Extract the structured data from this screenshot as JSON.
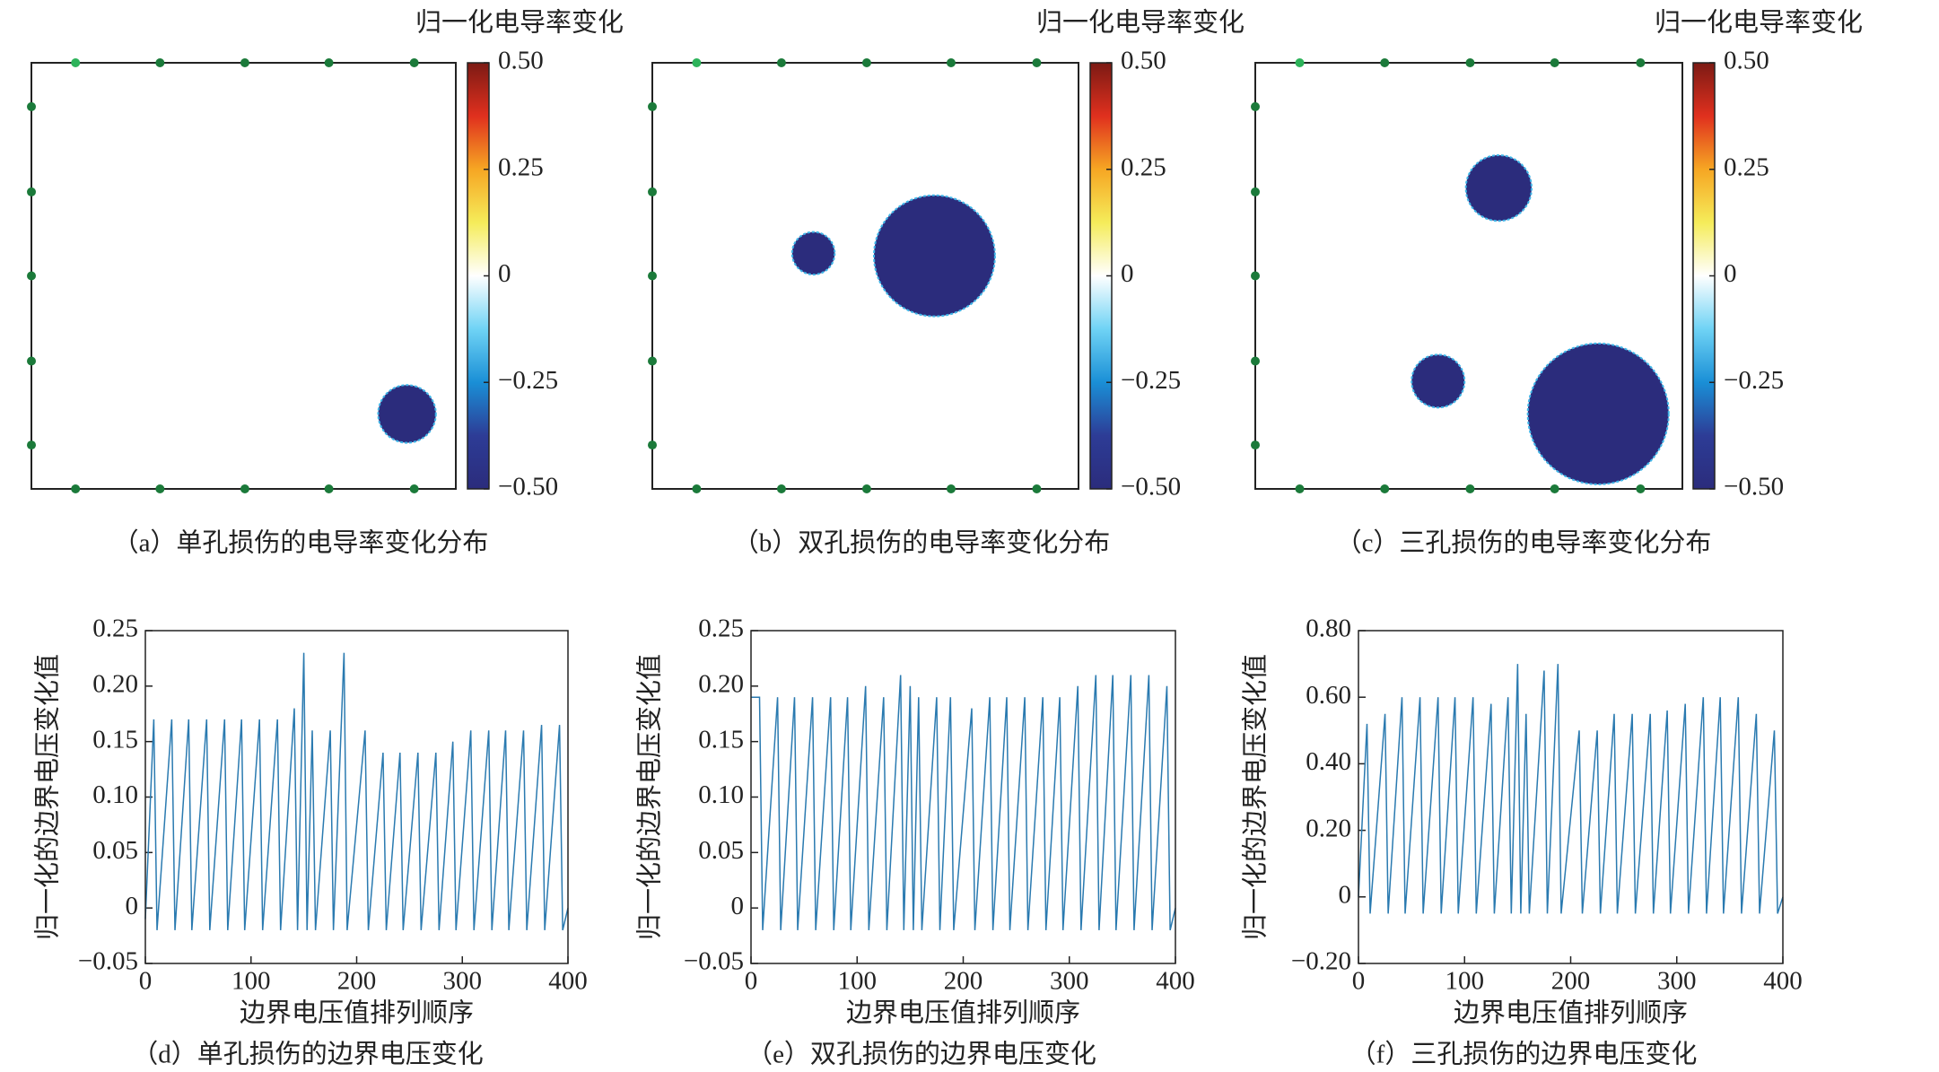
{
  "chart_data": [
    {
      "type": "conductivity-map",
      "title": "归一化电导率变化",
      "caption": "（a）单孔损伤的电导率变化分布",
      "circles": [
        {
          "x": 0.885,
          "y": 0.824,
          "r": 0.068,
          "value": -0.5
        }
      ],
      "colorscale": [
        "#2b2c7c",
        "#2d3c96",
        "#1a8fd6",
        "#6fd3f5",
        "#ffffff",
        "#f5ec5a",
        "#f6a623",
        "#e0301e",
        "#7c1a14"
      ],
      "clim": [
        -0.5,
        0.5
      ],
      "cticks": [
        {
          "value": 0.5,
          "label": "0.50"
        },
        0.25,
        0,
        {
          "value": -0.25,
          "label": "−0.25"
        },
        {
          "value": -0.5,
          "label": "−0.50"
        }
      ]
    },
    {
      "type": "conductivity-map",
      "title": "归一化电导率变化",
      "caption": "（b）双孔损伤的电导率变化分布",
      "circles": [
        {
          "x": 0.378,
          "y": 0.447,
          "r": 0.05,
          "value": -0.5
        },
        {
          "x": 0.662,
          "y": 0.453,
          "r": 0.142,
          "value": -0.5
        }
      ],
      "colorscale": [
        "#2b2c7c",
        "#2d3c96",
        "#1a8fd6",
        "#6fd3f5",
        "#ffffff",
        "#f5ec5a",
        "#f6a623",
        "#e0301e",
        "#7c1a14"
      ],
      "clim": [
        -0.5,
        0.5
      ],
      "cticks": [
        {
          "value": 0.5,
          "label": "0.50"
        },
        0.25,
        0,
        {
          "value": -0.25,
          "label": "−0.25"
        },
        {
          "value": -0.5,
          "label": "−0.50"
        }
      ]
    },
    {
      "type": "conductivity-map",
      "title": "归一化电导率变化",
      "caption": "（c）三孔损伤的电导率变化分布",
      "circles": [
        {
          "x": 0.57,
          "y": 0.294,
          "r": 0.077,
          "value": -0.5
        },
        {
          "x": 0.428,
          "y": 0.747,
          "r": 0.062,
          "value": -0.5
        },
        {
          "x": 0.803,
          "y": 0.824,
          "r": 0.165,
          "value": -0.5
        }
      ],
      "colorscale": [
        "#2b2c7c",
        "#2d3c96",
        "#1a8fd6",
        "#6fd3f5",
        "#ffffff",
        "#f5ec5a",
        "#f6a623",
        "#e0301e",
        "#7c1a14"
      ],
      "clim": [
        -0.5,
        0.5
      ],
      "cticks": [
        {
          "value": 0.5,
          "label": "0.50"
        },
        0.25,
        0,
        {
          "value": -0.25,
          "label": "−0.25"
        },
        {
          "value": -0.5,
          "label": "−0.50"
        }
      ]
    },
    {
      "type": "line",
      "caption": "（d）单孔损伤的边界电压变化",
      "xlabel": "边界电压值排列顺序",
      "ylabel": "归一化的边界电压变化值",
      "color": "#2a7ab0",
      "x": [
        0,
        8,
        11,
        25,
        28,
        41,
        44,
        58,
        61,
        75,
        78,
        91,
        94,
        108,
        111,
        125,
        128,
        141,
        144,
        150,
        153,
        158,
        161,
        175,
        178,
        188,
        191,
        208,
        211,
        225,
        228,
        241,
        244,
        258,
        261,
        275,
        278,
        291,
        294,
        308,
        311,
        325,
        328,
        341,
        344,
        358,
        361,
        375,
        378,
        392,
        395,
        400
      ],
      "values": [
        -0.01,
        0.17,
        -0.02,
        0.17,
        -0.02,
        0.17,
        -0.02,
        0.17,
        -0.02,
        0.17,
        -0.02,
        0.17,
        -0.02,
        0.17,
        -0.02,
        0.17,
        -0.02,
        0.18,
        -0.02,
        0.23,
        -0.02,
        0.16,
        -0.02,
        0.16,
        -0.02,
        0.23,
        -0.02,
        0.16,
        -0.02,
        0.14,
        -0.02,
        0.14,
        -0.02,
        0.14,
        -0.02,
        0.14,
        -0.02,
        0.15,
        -0.02,
        0.16,
        -0.02,
        0.16,
        -0.02,
        0.16,
        -0.02,
        0.16,
        -0.02,
        0.165,
        -0.02,
        0.165,
        -0.02,
        0
      ],
      "xlim": [
        0,
        400
      ],
      "xticks": [
        0,
        100,
        200,
        300,
        400
      ],
      "ylim": [
        -0.05,
        0.25
      ],
      "yticks": [
        0.25,
        {
          "value": 0.2,
          "label": "0.20"
        },
        0.15,
        {
          "value": 0.1,
          "label": "0.10"
        },
        0.05,
        0,
        {
          "value": -0.05,
          "label": "−0.05"
        }
      ]
    },
    {
      "type": "line",
      "caption": "（e）双孔损伤的边界电压变化",
      "xlabel": "边界电压值排列顺序",
      "ylabel": "归一化的边界电压变化值",
      "color": "#2a7ab0",
      "x": [
        0,
        8,
        11,
        25,
        28,
        41,
        44,
        58,
        61,
        75,
        78,
        91,
        94,
        108,
        111,
        125,
        128,
        141,
        144,
        150,
        153,
        158,
        161,
        175,
        178,
        188,
        191,
        208,
        211,
        225,
        228,
        241,
        244,
        258,
        261,
        275,
        278,
        291,
        294,
        308,
        311,
        325,
        328,
        341,
        344,
        358,
        361,
        375,
        378,
        392,
        395,
        400
      ],
      "values": [
        0.19,
        0.19,
        -0.02,
        0.19,
        -0.02,
        0.19,
        -0.02,
        0.19,
        -0.02,
        0.19,
        -0.02,
        0.19,
        -0.02,
        0.2,
        -0.02,
        0.19,
        -0.02,
        0.21,
        -0.02,
        0.2,
        -0.02,
        0.19,
        -0.02,
        0.19,
        -0.02,
        0.19,
        -0.02,
        0.18,
        -0.02,
        0.19,
        -0.02,
        0.19,
        -0.02,
        0.19,
        -0.02,
        0.19,
        -0.02,
        0.19,
        -0.02,
        0.2,
        -0.02,
        0.21,
        -0.02,
        0.21,
        -0.02,
        0.21,
        -0.02,
        0.21,
        -0.02,
        0.2,
        -0.02,
        0
      ],
      "xlim": [
        0,
        400
      ],
      "xticks": [
        0,
        100,
        200,
        300,
        400
      ],
      "ylim": [
        -0.05,
        0.25
      ],
      "yticks": [
        0.25,
        {
          "value": 0.2,
          "label": "0.20"
        },
        0.15,
        {
          "value": 0.1,
          "label": "0.10"
        },
        0.05,
        0,
        {
          "value": -0.05,
          "label": "−0.05"
        }
      ]
    },
    {
      "type": "line",
      "caption": "（f）三孔损伤的边界电压变化",
      "xlabel": "边界电压值排列顺序",
      "ylabel": "归一化的边界电压变化值",
      "color": "#2a7ab0",
      "x": [
        0,
        8,
        11,
        25,
        28,
        41,
        44,
        58,
        61,
        75,
        78,
        91,
        94,
        108,
        111,
        125,
        128,
        141,
        144,
        150,
        153,
        158,
        161,
        175,
        178,
        188,
        191,
        208,
        211,
        225,
        228,
        241,
        244,
        258,
        261,
        275,
        278,
        291,
        294,
        308,
        311,
        325,
        328,
        341,
        344,
        358,
        361,
        375,
        378,
        392,
        395,
        400
      ],
      "values": [
        0,
        0.52,
        -0.05,
        0.55,
        -0.05,
        0.6,
        -0.05,
        0.6,
        -0.05,
        0.6,
        -0.05,
        0.6,
        -0.05,
        0.6,
        -0.05,
        0.58,
        -0.05,
        0.6,
        -0.05,
        0.7,
        -0.05,
        0.55,
        -0.05,
        0.68,
        -0.05,
        0.7,
        -0.05,
        0.5,
        -0.05,
        0.5,
        -0.05,
        0.55,
        -0.05,
        0.55,
        -0.05,
        0.55,
        -0.05,
        0.56,
        -0.05,
        0.58,
        -0.05,
        0.6,
        -0.05,
        0.6,
        -0.05,
        0.6,
        -0.05,
        0.55,
        -0.05,
        0.5,
        -0.05,
        0
      ],
      "xlim": [
        0,
        400
      ],
      "xticks": [
        0,
        100,
        200,
        300,
        400
      ],
      "ylim": [
        -0.2,
        0.8
      ],
      "yticks": [
        {
          "value": 0.8,
          "label": "0.80"
        },
        {
          "value": 0.6,
          "label": "0.60"
        },
        {
          "value": 0.4,
          "label": "0.40"
        },
        {
          "value": 0.2,
          "label": "0.20"
        },
        0,
        {
          "value": -0.2,
          "label": "−0.20"
        }
      ]
    }
  ]
}
